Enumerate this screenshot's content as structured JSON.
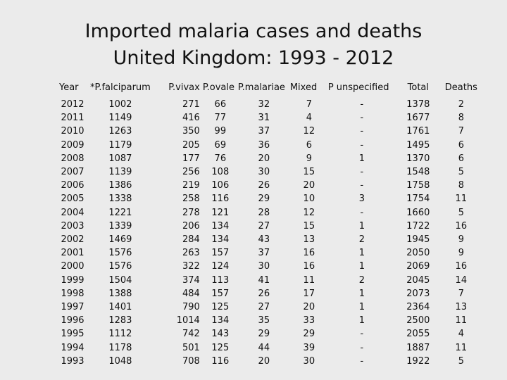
{
  "title": {
    "line1": "Imported malaria cases and deaths",
    "line2": "United Kingdom: 1993 - 2012"
  },
  "table": {
    "headers": {
      "year": "Year",
      "falciparum": "*P.falciparum",
      "vivax": "P.vivax",
      "ovale": "P.ovale",
      "malariae": "P.malariae",
      "mixed": "Mixed",
      "unspecified": "P unspecified",
      "total": "Total",
      "deaths": "Deaths"
    },
    "rows": [
      {
        "year": "2012",
        "falciparum": "1002",
        "vivax": "271",
        "ovale": "66",
        "malariae": "32",
        "mixed": "7",
        "unspecified": "-",
        "total": "1378",
        "deaths": "2"
      },
      {
        "year": "2011",
        "falciparum": "1149",
        "vivax": "416",
        "ovale": "77",
        "malariae": "31",
        "mixed": "4",
        "unspecified": "-",
        "total": "1677",
        "deaths": "8"
      },
      {
        "year": "2010",
        "falciparum": "1263",
        "vivax": "350",
        "ovale": "99",
        "malariae": "37",
        "mixed": "12",
        "unspecified": "-",
        "total": "1761",
        "deaths": "7"
      },
      {
        "year": "2009",
        "falciparum": "1179",
        "vivax": "205",
        "ovale": "69",
        "malariae": "36",
        "mixed": "6",
        "unspecified": "-",
        "total": "1495",
        "deaths": "6"
      },
      {
        "year": "2008",
        "falciparum": "1087",
        "vivax": "177",
        "ovale": "76",
        "malariae": "20",
        "mixed": "9",
        "unspecified": "1",
        "total": "1370",
        "deaths": "6"
      },
      {
        "year": "2007",
        "falciparum": "1139",
        "vivax": "256",
        "ovale": "108",
        "malariae": "30",
        "mixed": "15",
        "unspecified": "-",
        "total": "1548",
        "deaths": "5"
      },
      {
        "year": "2006",
        "falciparum": "1386",
        "vivax": "219",
        "ovale": "106",
        "malariae": "26",
        "mixed": "20",
        "unspecified": "-",
        "total": "1758",
        "deaths": "8"
      },
      {
        "year": "2005",
        "falciparum": "1338",
        "vivax": "258",
        "ovale": "116",
        "malariae": "29",
        "mixed": "10",
        "unspecified": "3",
        "total": "1754",
        "deaths": "11"
      },
      {
        "year": "2004",
        "falciparum": "1221",
        "vivax": "278",
        "ovale": "121",
        "malariae": "28",
        "mixed": "12",
        "unspecified": "-",
        "total": "1660",
        "deaths": "5"
      },
      {
        "year": "2003",
        "falciparum": "1339",
        "vivax": "206",
        "ovale": "134",
        "malariae": "27",
        "mixed": "15",
        "unspecified": "1",
        "total": "1722",
        "deaths": "16"
      },
      {
        "year": "2002",
        "falciparum": "1469",
        "vivax": "284",
        "ovale": "134",
        "malariae": "43",
        "mixed": "13",
        "unspecified": "2",
        "total": "1945",
        "deaths": "9"
      },
      {
        "year": "2001",
        "falciparum": "1576",
        "vivax": "263",
        "ovale": "157",
        "malariae": "37",
        "mixed": "16",
        "unspecified": "1",
        "total": "2050",
        "deaths": "9"
      },
      {
        "year": "2000",
        "falciparum": "1576",
        "vivax": "322",
        "ovale": "124",
        "malariae": "30",
        "mixed": "16",
        "unspecified": "1",
        "total": "2069",
        "deaths": "16"
      },
      {
        "year": "1999",
        "falciparum": "1504",
        "vivax": "374",
        "ovale": "113",
        "malariae": "41",
        "mixed": "11",
        "unspecified": "2",
        "total": "2045",
        "deaths": "14"
      },
      {
        "year": "1998",
        "falciparum": "1388",
        "vivax": "484",
        "ovale": "157",
        "malariae": "26",
        "mixed": "17",
        "unspecified": "1",
        "total": "2073",
        "deaths": "7"
      },
      {
        "year": "1997",
        "falciparum": "1401",
        "vivax": "790",
        "ovale": "125",
        "malariae": "27",
        "mixed": "20",
        "unspecified": "1",
        "total": "2364",
        "deaths": "13"
      },
      {
        "year": "1996",
        "falciparum": "1283",
        "vivax": "1014",
        "ovale": "134",
        "malariae": "35",
        "mixed": "33",
        "unspecified": "1",
        "total": "2500",
        "deaths": "11"
      },
      {
        "year": "1995",
        "falciparum": "1112",
        "vivax": "742",
        "ovale": "143",
        "malariae": "29",
        "mixed": "29",
        "unspecified": "-",
        "total": "2055",
        "deaths": "4"
      },
      {
        "year": "1994",
        "falciparum": "1178",
        "vivax": "501",
        "ovale": "125",
        "malariae": "44",
        "mixed": "39",
        "unspecified": "-",
        "total": "1887",
        "deaths": "11"
      },
      {
        "year": "1993",
        "falciparum": "1048",
        "vivax": "708",
        "ovale": "116",
        "malariae": "20",
        "mixed": "30",
        "unspecified": "-",
        "total": "1922",
        "deaths": "5"
      }
    ]
  }
}
